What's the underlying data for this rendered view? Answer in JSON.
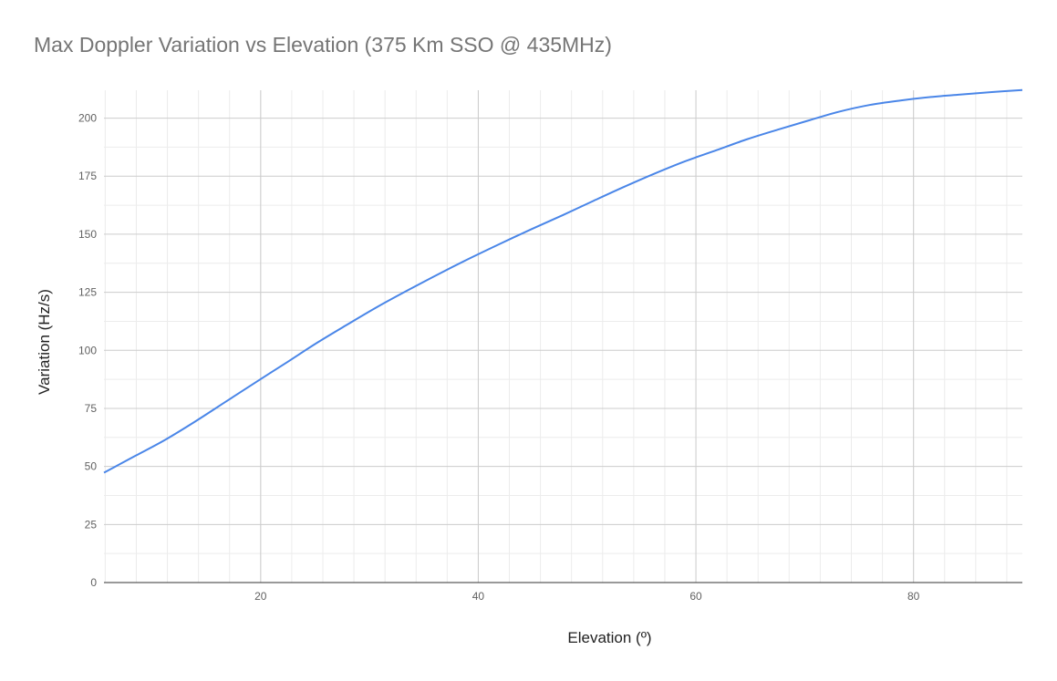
{
  "chart_data": {
    "type": "line",
    "title": "Max Doppler Variation vs Elevation (375 Km SSO @ 435MHz)",
    "xlabel": "Elevation (º)",
    "ylabel": "Variation (Hz/s)",
    "xlim": [
      5.6,
      90
    ],
    "ylim": [
      0,
      212
    ],
    "x_ticks": [
      20,
      40,
      60,
      80
    ],
    "x_tick_labels": [
      "20",
      "40",
      "60",
      "80"
    ],
    "y_ticks": [
      0,
      25,
      50,
      75,
      100,
      125,
      150,
      175,
      200
    ],
    "y_tick_labels": [
      "0",
      "25",
      "50",
      "75",
      "100",
      "125",
      "150",
      "175",
      "200"
    ],
    "x_minor_step": 2.857,
    "y_minor_step": 12.5,
    "grid": true,
    "legend": "none",
    "series": [
      {
        "color": "#4a86e8",
        "x": [
          5.6,
          8.5,
          11.2,
          14.0,
          16.8,
          19.6,
          22.4,
          25.2,
          28.0,
          30.8,
          33.7,
          36.5,
          39.3,
          42.1,
          44.9,
          47.8,
          50.6,
          53.4,
          56.2,
          59.0,
          61.9,
          64.7,
          67.5,
          70.3,
          73.1,
          76.0,
          78.8,
          81.6,
          84.4,
          87.2,
          90.0
        ],
        "y": [
          47.3,
          54.6,
          61.4,
          69.4,
          77.9,
          86.4,
          94.8,
          103.3,
          111.2,
          118.9,
          126.3,
          133.2,
          139.8,
          146.1,
          152.2,
          158.3,
          164.4,
          170.4,
          176.1,
          181.4,
          186.2,
          190.9,
          195.0,
          198.9,
          202.7,
          205.7,
          207.6,
          209.1,
          210.2,
          211.2,
          212.1
        ]
      }
    ]
  }
}
